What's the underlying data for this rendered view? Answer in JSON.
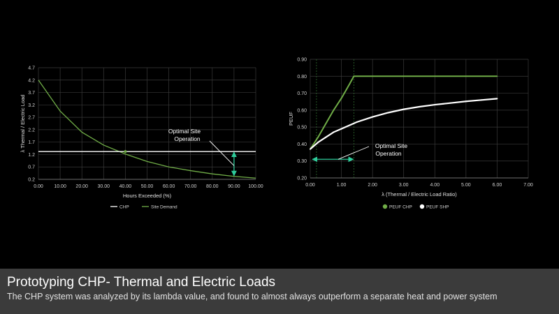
{
  "slide": {
    "title": "Prototyping CHP- Thermal and Electric Loads",
    "subtitle": "The CHP system was analyzed by its lambda value, and found to almost always outperform a separate heat and power system"
  },
  "colors": {
    "chp": "#ffffff",
    "site_demand": "#70ad47",
    "peuf_chp": "#70ad47",
    "peuf_shp": "#ffffff",
    "annotation_arrow": "#2ecc9a",
    "grid": "#3a3a3a",
    "caption_bar": "#3b3b3b"
  },
  "chart_data": [
    {
      "type": "line",
      "xlabel": "Hours Exceeded (%)",
      "ylabel": "λ Thermal / Electric Load",
      "xlim": [
        0,
        100
      ],
      "ylim": [
        0.2,
        4.7
      ],
      "xticks": [
        "0.00",
        "10.00",
        "20.00",
        "30.00",
        "40.00",
        "50.00",
        "60.00",
        "70.00",
        "80.00",
        "90.00",
        "100.00"
      ],
      "yticks": [
        "0.2",
        "0.7",
        "1.2",
        "1.7",
        "2.2",
        "2.7",
        "3.2",
        "3.7",
        "4.2",
        "4.7"
      ],
      "grid": true,
      "legend_position": "bottom",
      "series": [
        {
          "name": "CHP",
          "x": [
            0,
            100
          ],
          "y": [
            1.32,
            1.32
          ]
        },
        {
          "name": "Site Demand",
          "x": [
            0,
            10,
            20,
            30,
            40,
            50,
            60,
            70,
            80,
            90,
            100
          ],
          "y": [
            4.2,
            2.95,
            2.1,
            1.58,
            1.22,
            0.92,
            0.7,
            0.55,
            0.42,
            0.32,
            0.25
          ]
        }
      ],
      "annotation": {
        "text": [
          "Optimal Site",
          "Operation"
        ],
        "x": 90,
        "y_range": [
          0.32,
          1.32
        ]
      }
    },
    {
      "type": "scatter",
      "xlabel": "λ (Thermal / Electric Load Ratio)",
      "ylabel": "PEUF",
      "xlim": [
        0,
        7
      ],
      "ylim": [
        0.2,
        0.9
      ],
      "xticks": [
        "0.00",
        "1.00",
        "2.00",
        "3.00",
        "4.00",
        "5.00",
        "6.00",
        "7.00"
      ],
      "yticks": [
        "0.20",
        "0.30",
        "0.40",
        "0.50",
        "0.60",
        "0.70",
        "0.80",
        "0.90"
      ],
      "grid": true,
      "legend_position": "bottom",
      "series": [
        {
          "name": "PEUF CHP",
          "x": [
            0.0,
            0.25,
            0.5,
            0.75,
            1.0,
            1.25,
            1.4,
            2.0,
            3.0,
            4.0,
            5.0,
            6.0
          ],
          "y": [
            0.37,
            0.44,
            0.52,
            0.6,
            0.67,
            0.75,
            0.8,
            0.8,
            0.8,
            0.8,
            0.8,
            0.8
          ]
        },
        {
          "name": "PEUF SHP",
          "x": [
            0.0,
            0.25,
            0.5,
            0.75,
            1.0,
            1.5,
            2.0,
            2.5,
            3.0,
            3.5,
            4.0,
            4.5,
            5.0,
            5.5,
            6.0
          ],
          "y": [
            0.37,
            0.41,
            0.44,
            0.47,
            0.49,
            0.53,
            0.56,
            0.585,
            0.605,
            0.62,
            0.632,
            0.642,
            0.652,
            0.66,
            0.668
          ]
        }
      ],
      "annotation": {
        "text": [
          "Optimal Site",
          "Operation"
        ],
        "x_range": [
          0.05,
          1.4
        ],
        "y": 0.31
      }
    }
  ]
}
